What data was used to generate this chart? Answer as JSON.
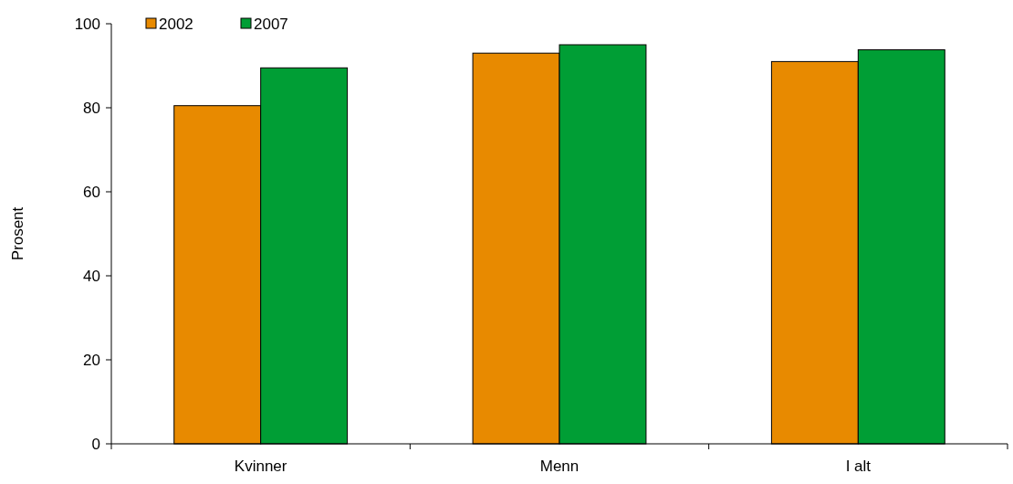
{
  "chart_data": {
    "type": "bar",
    "ylabel": "Prosent",
    "categories": [
      "Kvinner",
      "Menn",
      "I alt"
    ],
    "series": [
      {
        "name": "2002",
        "color": "#e88a00",
        "values": [
          80.5,
          93,
          91
        ]
      },
      {
        "name": "2007",
        "color": "#009e35",
        "values": [
          89.5,
          95,
          93.8
        ]
      }
    ],
    "ylim": [
      0,
      100
    ],
    "yticks": [
      0,
      20,
      40,
      60,
      80,
      100
    ],
    "grid": false,
    "legend": "top left"
  }
}
